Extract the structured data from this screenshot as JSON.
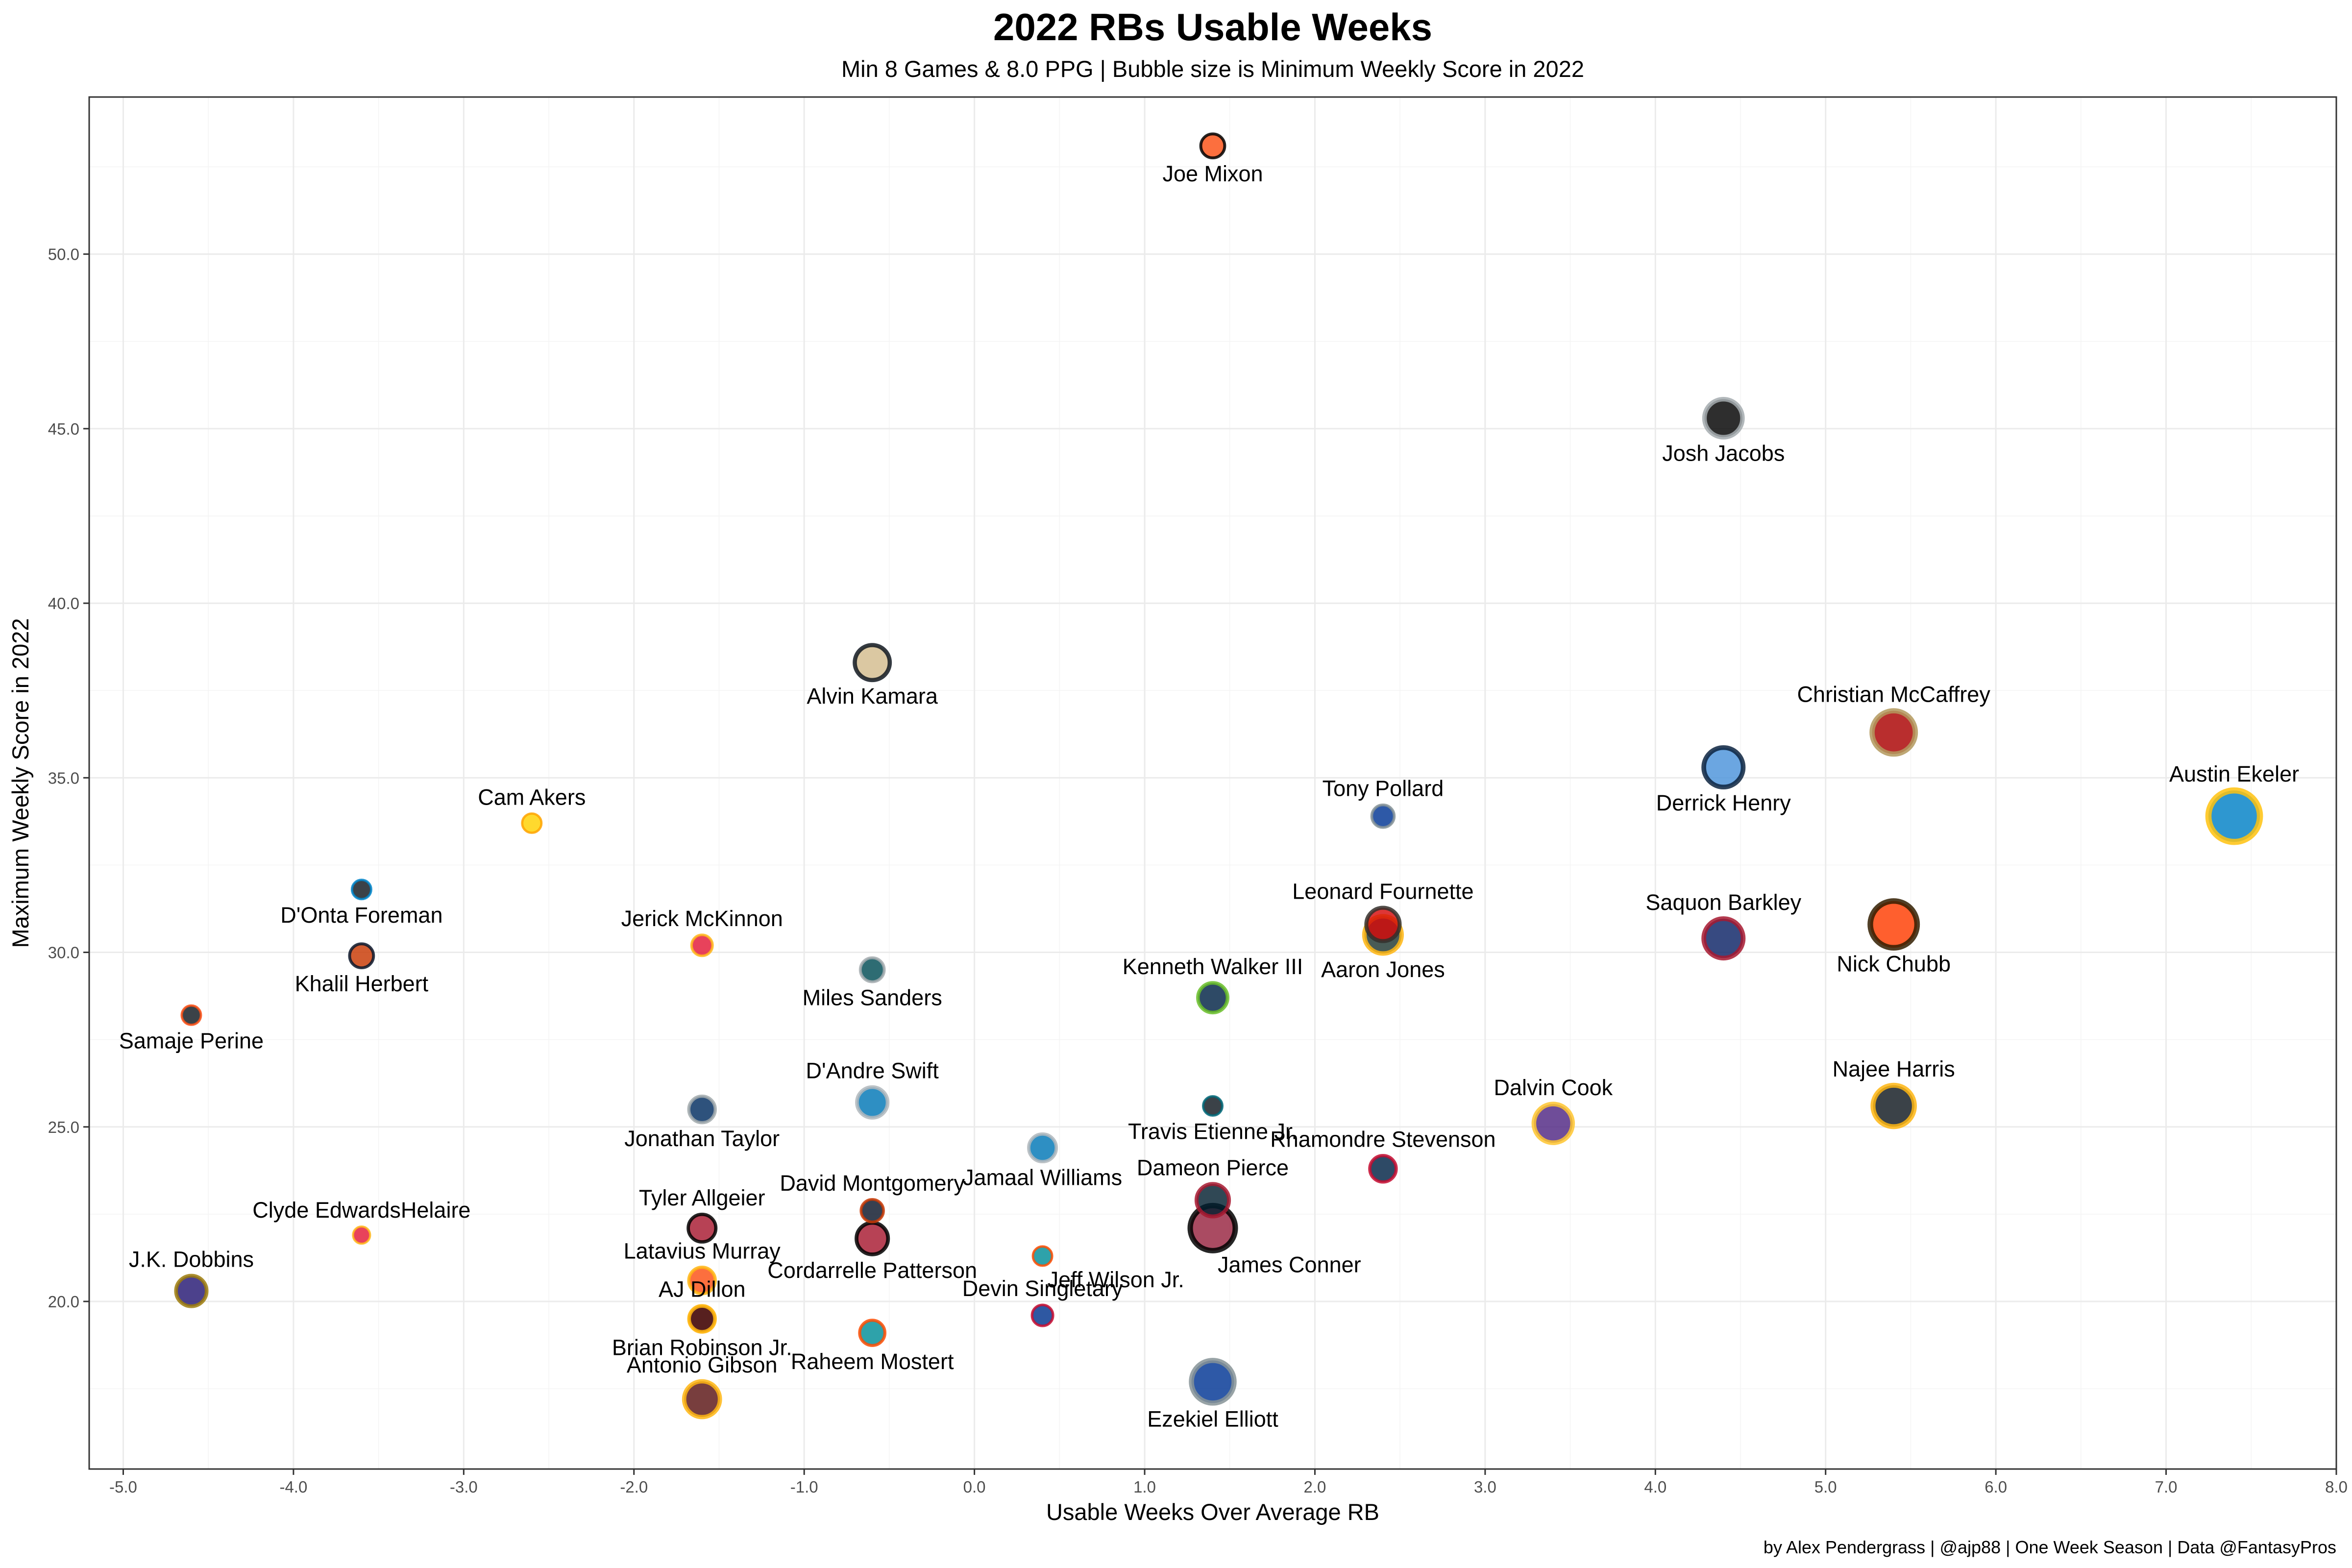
{
  "chart_data": {
    "type": "scatter",
    "title": "2022 RBs Usable Weeks",
    "subtitle": "Min 8 Games & 8.0 PPG | Bubble size is Minimum Weekly Score in 2022",
    "xlabel": "Usable Weeks Over Average RB",
    "ylabel": "Maximum Weekly Score in 2022",
    "caption": "by Alex Pendergrass | @ajp88 | One Week Season | Data @FantasyPros",
    "xlim": [
      -5.2,
      8.0
    ],
    "ylim": [
      15.2,
      54.5
    ],
    "x_ticks": [
      -5,
      -4,
      -3,
      -2,
      -1,
      0,
      1,
      2,
      3,
      4,
      5,
      6,
      7,
      8
    ],
    "x_tick_labels": [
      "-5.0",
      "-4.0",
      "-3.0",
      "-2.0",
      "-1.0",
      "0.0",
      "1.0",
      "2.0",
      "3.0",
      "4.0",
      "5.0",
      "6.0",
      "7.0",
      "8.0"
    ],
    "y_ticks": [
      20,
      25,
      30,
      35,
      40,
      45,
      50
    ],
    "y_tick_labels": [
      "20.0",
      "25.0",
      "30.0",
      "35.0",
      "40.0",
      "45.0",
      "50.0"
    ],
    "grid": true,
    "legend": "none",
    "points": [
      {
        "name": "Joe Mixon",
        "x": 1.4,
        "y": 53.1,
        "min_score": 3.0,
        "fill": "#fb4f14",
        "stroke": "#000000",
        "label_pos": "below"
      },
      {
        "name": "Josh Jacobs",
        "x": 4.4,
        "y": 45.3,
        "min_score": 10.5,
        "fill": "#000000",
        "stroke": "#a5acaf",
        "label_pos": "below"
      },
      {
        "name": "Alvin Kamara",
        "x": -0.6,
        "y": 38.3,
        "min_score": 8.5,
        "fill": "#d3bc8d",
        "stroke": "#101820",
        "label_pos": "below"
      },
      {
        "name": "Christian McCaffrey",
        "x": 5.4,
        "y": 36.3,
        "min_score": 14.5,
        "fill": "#aa0000",
        "stroke": "#b3995d",
        "label_pos": "above"
      },
      {
        "name": "Derrick Henry",
        "x": 4.4,
        "y": 35.3,
        "min_score": 11.5,
        "fill": "#4b92db",
        "stroke": "#0c2340",
        "label_pos": "below"
      },
      {
        "name": "Austin Ekeler",
        "x": 7.4,
        "y": 33.9,
        "min_score": 22.0,
        "fill": "#0080c6",
        "stroke": "#ffc20e",
        "label_pos": "above"
      },
      {
        "name": "Tony Pollard",
        "x": 2.4,
        "y": 33.9,
        "min_score": 2.5,
        "fill": "#003594",
        "stroke": "#869397",
        "label_pos": "above"
      },
      {
        "name": "Cam Akers",
        "x": -2.6,
        "y": 33.7,
        "min_score": 1.5,
        "fill": "#ffd100",
        "stroke": "#ffa300",
        "label_pos": "above"
      },
      {
        "name": "D'Onta Foreman",
        "x": -3.6,
        "y": 31.8,
        "min_score": 1.5,
        "fill": "#101820",
        "stroke": "#0085ca",
        "label_pos": "below"
      },
      {
        "name": "Nick Chubb",
        "x": 5.4,
        "y": 30.8,
        "min_score": 17.5,
        "fill": "#ff3c00",
        "stroke": "#311d00",
        "label_pos": "below"
      },
      {
        "name": "Leonard Fournette",
        "x": 2.4,
        "y": 30.8,
        "min_score": 7.5,
        "fill": "#d50a0a",
        "stroke": "#34302b",
        "label_pos": "above"
      },
      {
        "name": "Aaron Jones",
        "x": 2.4,
        "y": 30.5,
        "min_score": 10.0,
        "fill": "#203731",
        "stroke": "#ffb612",
        "label_pos": "below"
      },
      {
        "name": "Saquon Barkley",
        "x": 4.4,
        "y": 30.4,
        "min_score": 11.5,
        "fill": "#0b2265",
        "stroke": "#a71930",
        "label_pos": "above"
      },
      {
        "name": "Jerick McKinnon",
        "x": -1.6,
        "y": 30.2,
        "min_score": 2.0,
        "fill": "#e31837",
        "stroke": "#ffb81c",
        "label_pos": "above"
      },
      {
        "name": "Khalil Herbert",
        "x": -3.6,
        "y": 29.9,
        "min_score": 3.0,
        "fill": "#c83803",
        "stroke": "#0b162a",
        "label_pos": "below"
      },
      {
        "name": "Miles Sanders",
        "x": -0.6,
        "y": 29.5,
        "min_score": 3.0,
        "fill": "#004c54",
        "stroke": "#a5acaf",
        "label_pos": "below"
      },
      {
        "name": "Kenneth Walker III",
        "x": 1.4,
        "y": 28.7,
        "min_score": 5.5,
        "fill": "#002244",
        "stroke": "#69be28",
        "label_pos": "above"
      },
      {
        "name": "Samaje Perine",
        "x": -4.6,
        "y": 28.2,
        "min_score": 1.5,
        "fill": "#101820",
        "stroke": "#fb4f14",
        "label_pos": "below"
      },
      {
        "name": "D'Andre Swift",
        "x": -0.6,
        "y": 25.7,
        "min_score": 6.0,
        "fill": "#0076b6",
        "stroke": "#b0b7bc",
        "label_pos": "above"
      },
      {
        "name": "Travis Etienne Jr.",
        "x": 1.4,
        "y": 25.6,
        "min_score": 1.5,
        "fill": "#101820",
        "stroke": "#006778",
        "label_pos": "below"
      },
      {
        "name": "Najee Harris",
        "x": 5.4,
        "y": 25.6,
        "min_score": 13.0,
        "fill": "#101820",
        "stroke": "#ffb612",
        "label_pos": "above"
      },
      {
        "name": "Jonathan Taylor",
        "x": -1.6,
        "y": 25.5,
        "min_score": 4.0,
        "fill": "#002c5f",
        "stroke": "#a2aaad",
        "label_pos": "below"
      },
      {
        "name": "Dalvin Cook",
        "x": 3.4,
        "y": 25.1,
        "min_score": 11.0,
        "fill": "#4f2683",
        "stroke": "#ffc62f",
        "label_pos": "above"
      },
      {
        "name": "Jamaal Williams",
        "x": 0.4,
        "y": 24.4,
        "min_score": 4.5,
        "fill": "#0076b6",
        "stroke": "#b0b7bc",
        "label_pos": "below"
      },
      {
        "name": "Rhamondre Stevenson",
        "x": 2.4,
        "y": 23.8,
        "min_score": 4.0,
        "fill": "#002244",
        "stroke": "#c60c30",
        "label_pos": "above"
      },
      {
        "name": "Dameon Pierce",
        "x": 1.4,
        "y": 22.9,
        "min_score": 7.0,
        "fill": "#03202f",
        "stroke": "#a71930",
        "label_pos": "above"
      },
      {
        "name": "David Montgomery",
        "x": -0.6,
        "y": 22.6,
        "min_score": 2.5,
        "fill": "#0b162a",
        "stroke": "#c83803",
        "label_pos": "above"
      },
      {
        "name": "James Conner",
        "x": 1.4,
        "y": 22.1,
        "min_score": 16.0,
        "fill": "#97233f",
        "stroke": "#000000",
        "label_pos": "below-right"
      },
      {
        "name": "Tyler Allgeier",
        "x": -1.6,
        "y": 22.1,
        "min_score": 4.5,
        "fill": "#a71930",
        "stroke": "#000000",
        "label_pos": "above"
      },
      {
        "name": "Clyde EdwardsHelaire",
        "x": -3.6,
        "y": 21.9,
        "min_score": 1.0,
        "fill": "#e31837",
        "stroke": "#ffb81c",
        "label_pos": "above"
      },
      {
        "name": "Cordarrelle Patterson",
        "x": -0.6,
        "y": 21.8,
        "min_score": 6.5,
        "fill": "#a71930",
        "stroke": "#000000",
        "label_pos": "below"
      },
      {
        "name": "Jeff Wilson Jr.",
        "x": 0.4,
        "y": 21.3,
        "min_score": 1.5,
        "fill": "#008e97",
        "stroke": "#fc4c02",
        "label_pos": "below-right"
      },
      {
        "name": "Latavius Murray",
        "x": -1.6,
        "y": 20.6,
        "min_score": 4.0,
        "fill": "#fb4f14",
        "stroke": "#ffb612",
        "label_pos": "above"
      },
      {
        "name": "J.K. Dobbins",
        "x": -4.6,
        "y": 20.3,
        "min_score": 6.0,
        "fill": "#241773",
        "stroke": "#9e7c0c",
        "label_pos": "above"
      },
      {
        "name": "AJ Dillon",
        "x": -1.6,
        "y": 19.5,
        "min_score": 4.0,
        "fill": "#203731",
        "stroke": "#ffb612",
        "label_pos": "above"
      },
      {
        "name": "Devin Singletary",
        "x": 0.4,
        "y": 19.6,
        "min_score": 2.0,
        "fill": "#00338d",
        "stroke": "#c60c30",
        "label_pos": "above"
      },
      {
        "name": "Brian Robinson Jr.",
        "x": -1.6,
        "y": 19.5,
        "min_score": 3.5,
        "fill": "#5a1414",
        "stroke": "#ffb612",
        "label_pos": "below"
      },
      {
        "name": "Raheem Mostert",
        "x": -0.6,
        "y": 19.1,
        "min_score": 3.5,
        "fill": "#008e97",
        "stroke": "#fc4c02",
        "label_pos": "below"
      },
      {
        "name": "Ezekiel Elliott",
        "x": 1.4,
        "y": 17.7,
        "min_score": 14.0,
        "fill": "#003594",
        "stroke": "#869397",
        "label_pos": "below"
      },
      {
        "name": "Antonio Gibson",
        "x": -1.6,
        "y": 17.2,
        "min_score": 9.0,
        "fill": "#5a1414",
        "stroke": "#ffb612",
        "label_pos": "above"
      }
    ]
  }
}
